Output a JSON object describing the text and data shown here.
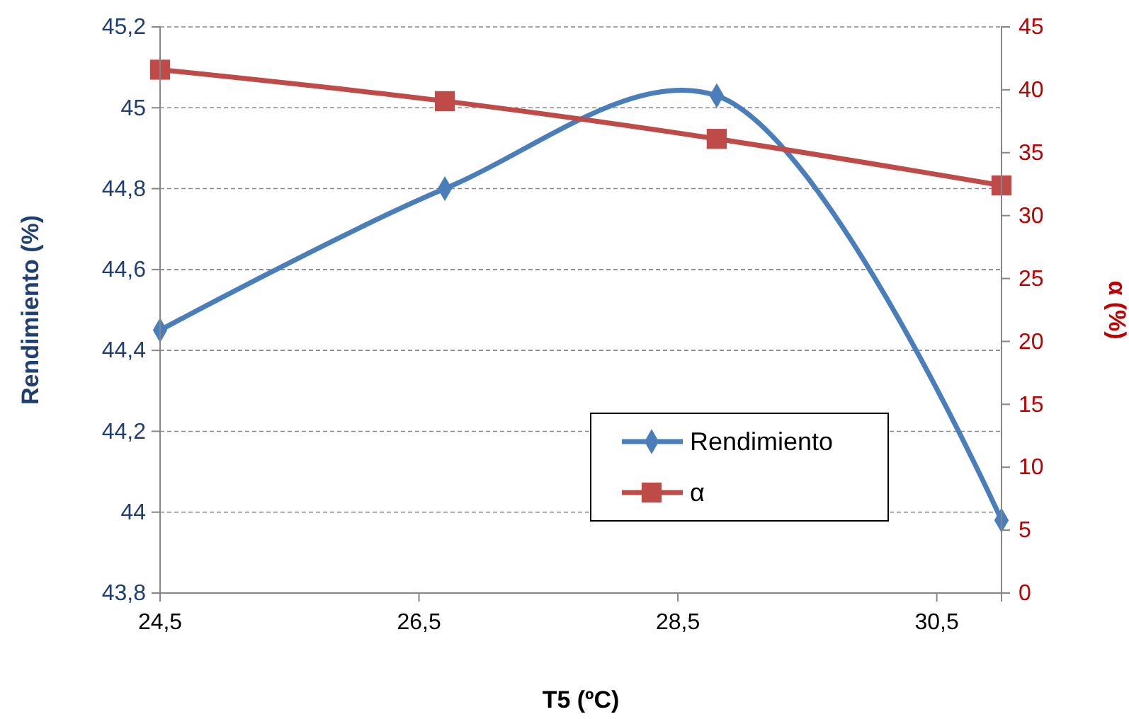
{
  "chart_data": {
    "type": "line",
    "xlabel": "T5 (ºC)",
    "ylabel": "Rendimiento (%)",
    "y2label": "α (%)",
    "xlim": [
      24.5,
      31
    ],
    "xticks": [
      {
        "value": 24.5,
        "label": "24,5"
      },
      {
        "value": 26.5,
        "label": "26,5"
      },
      {
        "value": 28.5,
        "label": "28,5"
      },
      {
        "value": 30.5,
        "label": "30,5"
      }
    ],
    "ylim": [
      43.8,
      45.2
    ],
    "yticks": [
      {
        "value": 43.8,
        "label": "43,8"
      },
      {
        "value": 44,
        "label": "44"
      },
      {
        "value": 44.2,
        "label": "44,2"
      },
      {
        "value": 44.4,
        "label": "44,4"
      },
      {
        "value": 44.6,
        "label": "44,6"
      },
      {
        "value": 44.8,
        "label": "44,8"
      },
      {
        "value": 45,
        "label": "45"
      },
      {
        "value": 45.2,
        "label": "45,2"
      }
    ],
    "y2lim": [
      0,
      45
    ],
    "y2ticks": [
      0,
      5,
      10,
      15,
      20,
      25,
      30,
      35,
      40,
      45
    ],
    "x": [
      24.5,
      26.7,
      28.8,
      31.0
    ],
    "series": [
      {
        "name": "Rendimiento",
        "color": "#4a7ebb",
        "marker": "diamond",
        "values": [
          44.45,
          44.8,
          45.03,
          43.98
        ]
      },
      {
        "name": "α",
        "color": "#be4b48",
        "marker": "square",
        "axis": "y2",
        "values": [
          41.6,
          39.1,
          36.1,
          32.4
        ]
      }
    ],
    "grid": "y",
    "legend": "bottom right",
    "line_style": "solid"
  }
}
